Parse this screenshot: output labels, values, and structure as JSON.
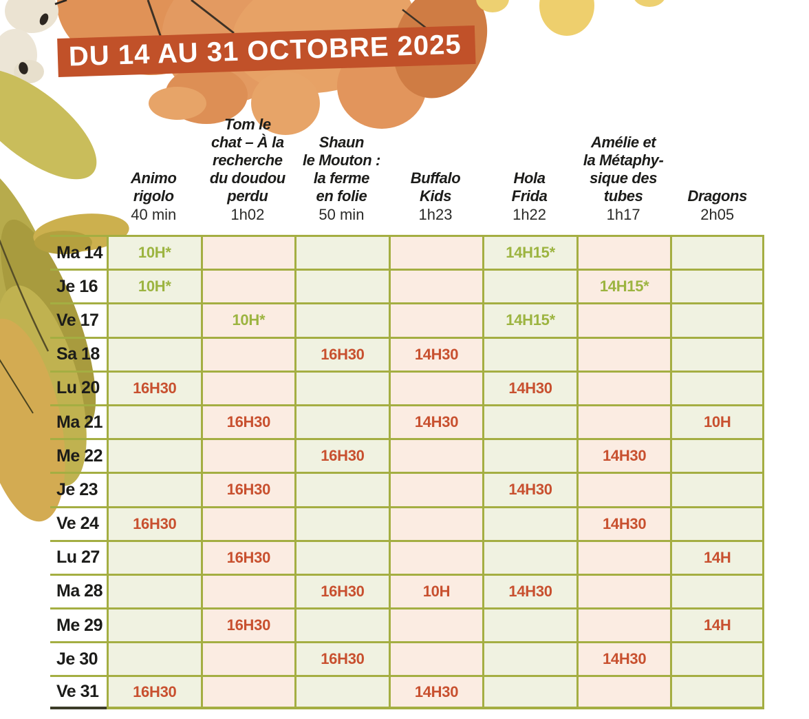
{
  "banner": {
    "title": "DU 14 AU 31 OCTOBRE 2025",
    "background": "#c15129",
    "text_color": "#ffffff"
  },
  "palette": {
    "grid_line": "#a4ae42",
    "cell_green_bg": "#f0f2e1",
    "cell_pink_bg": "#fbece2",
    "time_green": "#9cb440",
    "time_red": "#c8502f",
    "text_dark": "#1c1c1a",
    "date_bottom_border": "#3c3c28"
  },
  "schedule": {
    "films": [
      {
        "title": "Animo\nrigolo",
        "duration": "40 min"
      },
      {
        "title": "Tom le\nchat – À la\nrecherche\ndu doudou\nperdu",
        "duration": "1h02"
      },
      {
        "title": "Shaun\nle Mouton :\nla ferme\nen folie",
        "duration": "50 min"
      },
      {
        "title": "Buffalo\nKids",
        "duration": "1h23"
      },
      {
        "title": "Hola\nFrida",
        "duration": "1h22"
      },
      {
        "title": "Amélie et\nla Métaphy-\nsique des\ntubes",
        "duration": "1h17"
      },
      {
        "title": "Dragons",
        "duration": "2h05"
      }
    ],
    "rows": [
      {
        "date": "Ma 14",
        "times": [
          "10H*",
          "",
          "",
          "",
          "14H15*",
          "",
          ""
        ]
      },
      {
        "date": "Je 16",
        "times": [
          "10H*",
          "",
          "",
          "",
          "",
          "14H15*",
          ""
        ]
      },
      {
        "date": "Ve 17",
        "times": [
          "",
          "10H*",
          "",
          "",
          "14H15*",
          "",
          ""
        ]
      },
      {
        "date": "Sa 18",
        "times": [
          "",
          "",
          "16H30",
          "14H30",
          "",
          "",
          ""
        ]
      },
      {
        "date": "Lu 20",
        "times": [
          "16H30",
          "",
          "",
          "",
          "14H30",
          "",
          ""
        ]
      },
      {
        "date": "Ma 21",
        "times": [
          "",
          "16H30",
          "",
          "14H30",
          "",
          "",
          "10H"
        ]
      },
      {
        "date": "Me 22",
        "times": [
          "",
          "",
          "16H30",
          "",
          "",
          "14H30",
          ""
        ]
      },
      {
        "date": "Je 23",
        "times": [
          "",
          "16H30",
          "",
          "",
          "14H30",
          "",
          ""
        ]
      },
      {
        "date": "Ve 24",
        "times": [
          "16H30",
          "",
          "",
          "",
          "",
          "14H30",
          ""
        ]
      },
      {
        "date": "Lu 27",
        "times": [
          "",
          "16H30",
          "",
          "",
          "",
          "",
          "14H"
        ]
      },
      {
        "date": "Ma 28",
        "times": [
          "",
          "",
          "16H30",
          "10H",
          "14H30",
          "",
          ""
        ]
      },
      {
        "date": "Me 29",
        "times": [
          "",
          "16H30",
          "",
          "",
          "",
          "",
          "14H"
        ]
      },
      {
        "date": "Je 30",
        "times": [
          "",
          "",
          "16H30",
          "",
          "",
          "14H30",
          ""
        ]
      },
      {
        "date": "Ve 31",
        "times": [
          "16H30",
          "",
          "",
          "14H30",
          "",
          "",
          ""
        ]
      }
    ]
  }
}
